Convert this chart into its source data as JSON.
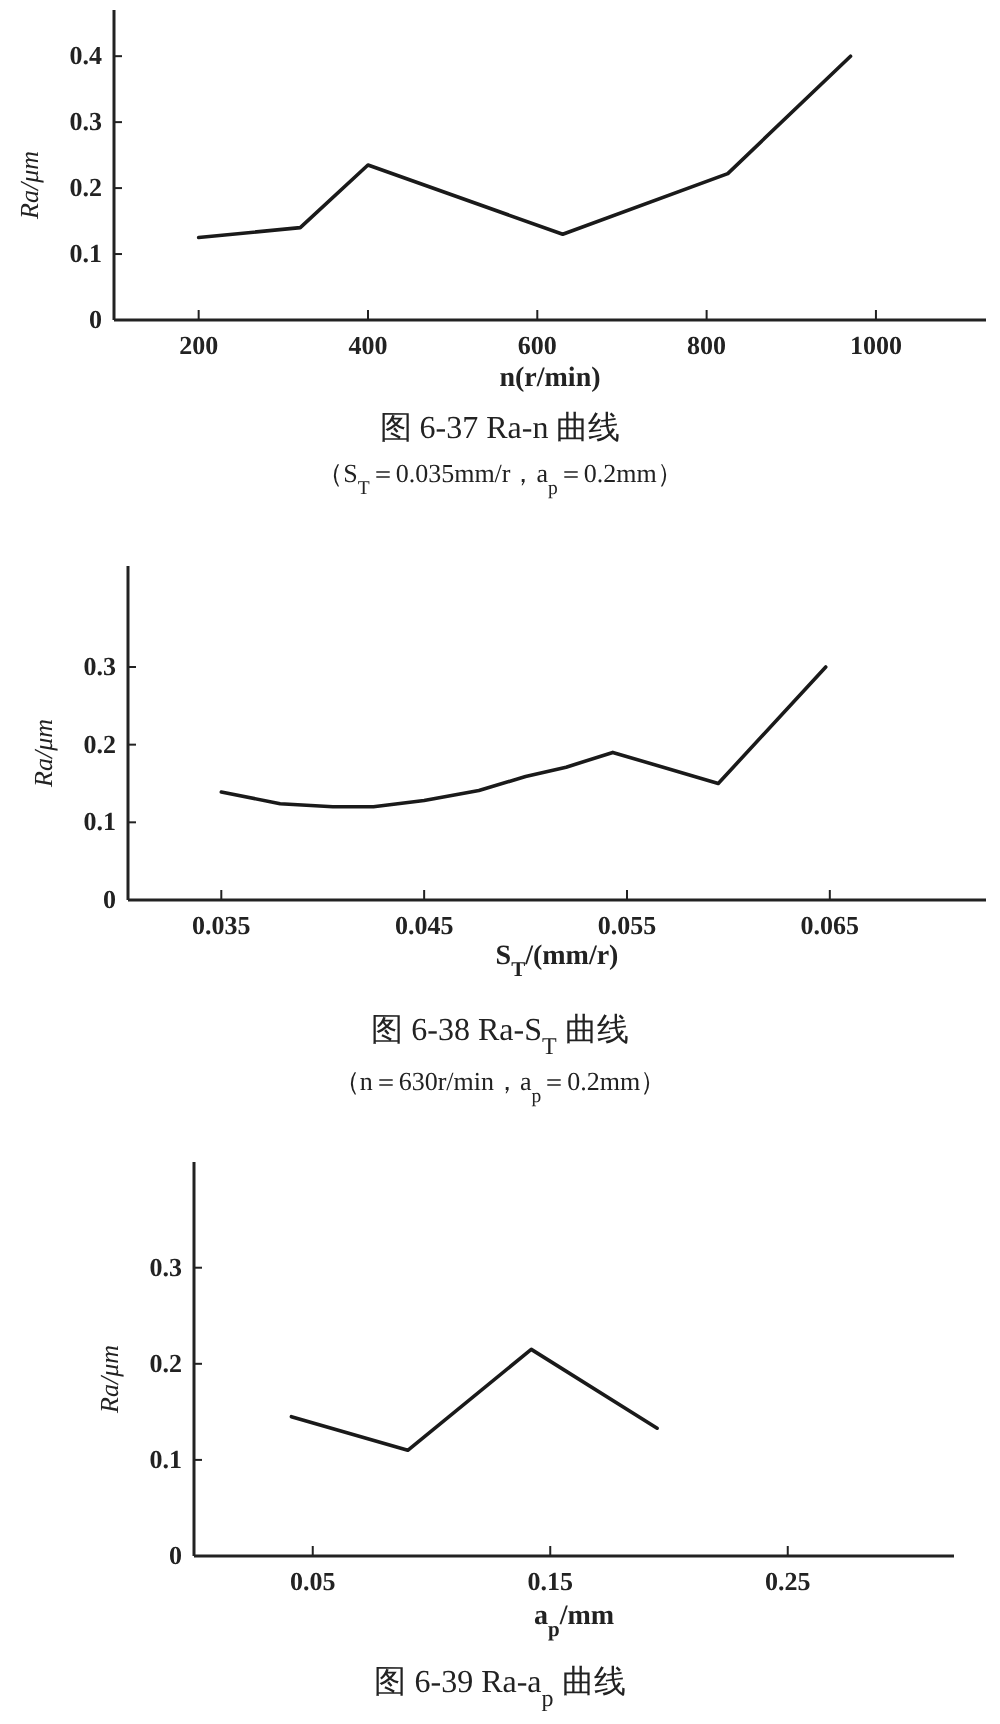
{
  "chart_data": [
    {
      "type": "line",
      "title": "图 6-37 Ra-n 曲线",
      "subtitle": "（S$_{T}$＝0.035mm/r，a$_{p}$＝0.2mm）",
      "xlabel": "n(r/min)",
      "ylabel": "Ra/μm",
      "xlim": [
        100,
        1130
      ],
      "ylim": [
        0,
        0.47
      ],
      "xticks": [
        200,
        400,
        600,
        800,
        1000
      ],
      "yticks": [
        0,
        0.1,
        0.2,
        0.3,
        0.4
      ],
      "line_style": "solid",
      "series": [
        {
          "color": "#1a1a1a",
          "x": [
            200,
            320,
            400,
            630,
            825,
            970
          ],
          "values": [
            0.125,
            0.14,
            0.235,
            0.13,
            0.222,
            0.4
          ]
        }
      ]
    },
    {
      "type": "line",
      "title": "图 6-38 Ra-S$_{T}$ 曲线",
      "subtitle": "（n＝630r/min，a$_{p}$＝0.2mm）",
      "xlabel": "S$_{T}$/(mm/r)",
      "ylabel": "Ra/μm",
      "xlim": [
        0.0304,
        0.0727
      ],
      "ylim": [
        0,
        0.43
      ],
      "xticks": [
        0.035,
        0.045,
        0.055,
        0.065
      ],
      "yticks": [
        0,
        0.1,
        0.2,
        0.3
      ],
      "line_style": "solid",
      "series": [
        {
          "color": "#1a1a1a",
          "x": [
            0.035,
            0.0379,
            0.0405,
            0.0425,
            0.045,
            0.0477,
            0.05,
            0.052,
            0.0543,
            0.0595,
            0.0648
          ],
          "values": [
            0.139,
            0.124,
            0.12,
            0.12,
            0.128,
            0.141,
            0.159,
            0.171,
            0.19,
            0.15,
            0.3
          ]
        }
      ]
    },
    {
      "type": "line",
      "title": "图 6-39 Ra-a$_{p}$ 曲线",
      "xlabel": "a$_{p}$/mm",
      "ylabel": "Ra/μm",
      "xlim": [
        0,
        0.32
      ],
      "ylim": [
        0,
        0.41
      ],
      "xticks": [
        0.05,
        0.15,
        0.25
      ],
      "yticks": [
        0,
        0.1,
        0.2,
        0.3
      ],
      "line_style": "solid",
      "series": [
        {
          "color": "#1a1a1a",
          "x": [
            0.041,
            0.09,
            0.142,
            0.195
          ],
          "values": [
            0.145,
            0.11,
            0.215,
            0.133
          ]
        }
      ]
    }
  ]
}
